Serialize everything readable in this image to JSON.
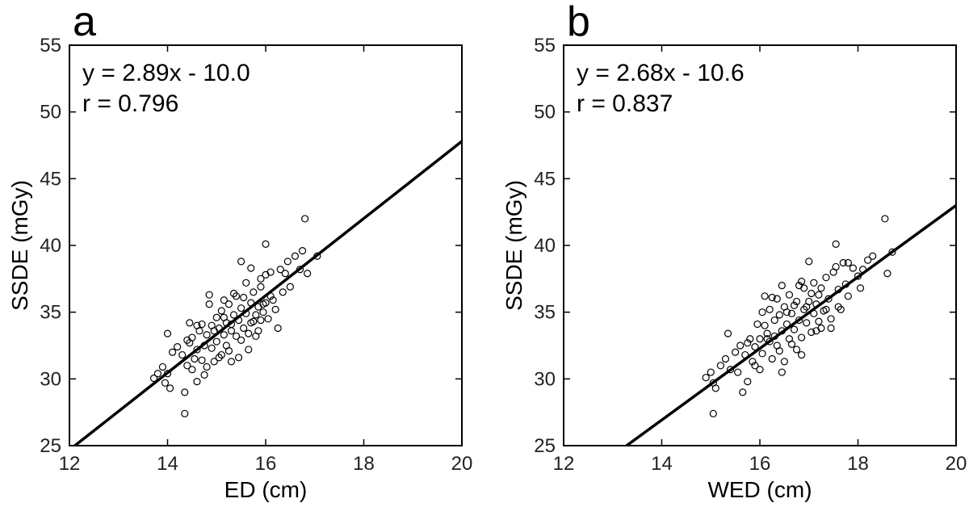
{
  "chart_data": [
    {
      "panel_letter": "a",
      "type": "scatter",
      "xlabel": "ED (cm)",
      "ylabel": "SSDE (mGy)",
      "xlim": [
        12,
        20
      ],
      "ylim": [
        25,
        55
      ],
      "xticks": [
        "12",
        "14",
        "16",
        "18",
        "20"
      ],
      "yticks": [
        "25",
        "30",
        "35",
        "40",
        "45",
        "50",
        "55"
      ],
      "equation": "y = 2.89x - 10.0",
      "correlation": "r = 0.796",
      "fit": {
        "slope": 2.89,
        "intercept": -10.0
      },
      "points": [
        [
          13.72,
          30.05
        ],
        [
          13.8,
          30.4
        ],
        [
          13.9,
          30.9
        ],
        [
          13.95,
          29.7
        ],
        [
          14.0,
          30.4
        ],
        [
          14.05,
          29.3
        ],
        [
          14.1,
          32.0
        ],
        [
          14.0,
          33.4
        ],
        [
          14.2,
          32.4
        ],
        [
          14.3,
          31.8
        ],
        [
          14.35,
          27.4
        ],
        [
          14.35,
          29.0
        ],
        [
          14.4,
          31.0
        ],
        [
          14.45,
          32.7
        ],
        [
          14.5,
          30.7
        ],
        [
          14.5,
          33.1
        ],
        [
          14.55,
          31.5
        ],
        [
          14.6,
          32.2
        ],
        [
          14.6,
          29.8
        ],
        [
          14.65,
          33.6
        ],
        [
          14.7,
          31.4
        ],
        [
          14.7,
          34.1
        ],
        [
          14.75,
          32.5
        ],
        [
          14.8,
          30.9
        ],
        [
          14.8,
          33.3
        ],
        [
          14.85,
          35.6
        ],
        [
          14.9,
          34.0
        ],
        [
          14.9,
          32.3
        ],
        [
          14.95,
          31.3
        ],
        [
          15.0,
          34.6
        ],
        [
          15.0,
          32.8
        ],
        [
          15.05,
          33.8
        ],
        [
          15.1,
          31.8
        ],
        [
          15.1,
          35.1
        ],
        [
          15.15,
          33.3
        ],
        [
          15.2,
          34.2
        ],
        [
          15.2,
          32.5
        ],
        [
          15.25,
          35.6
        ],
        [
          15.3,
          33.6
        ],
        [
          15.3,
          31.3
        ],
        [
          15.35,
          34.8
        ],
        [
          15.4,
          33.2
        ],
        [
          15.4,
          36.2
        ],
        [
          15.45,
          34.4
        ],
        [
          15.5,
          32.9
        ],
        [
          15.5,
          35.3
        ],
        [
          15.55,
          33.8
        ],
        [
          15.6,
          34.9
        ],
        [
          15.6,
          37.2
        ],
        [
          15.65,
          33.4
        ],
        [
          15.7,
          35.7
        ],
        [
          15.7,
          34.2
        ],
        [
          15.75,
          36.5
        ],
        [
          15.8,
          34.8
        ],
        [
          15.8,
          33.2
        ],
        [
          15.85,
          35.4
        ],
        [
          15.9,
          34.4
        ],
        [
          15.9,
          36.9
        ],
        [
          15.95,
          35.0
        ],
        [
          16.0,
          37.8
        ],
        [
          16.0,
          35.7
        ],
        [
          16.0,
          40.1
        ],
        [
          16.05,
          34.5
        ],
        [
          16.1,
          36.2
        ],
        [
          16.1,
          38.0
        ],
        [
          16.2,
          35.2
        ],
        [
          16.25,
          33.8
        ],
        [
          16.3,
          38.2
        ],
        [
          16.35,
          36.5
        ],
        [
          16.4,
          37.9
        ],
        [
          16.45,
          38.8
        ],
        [
          16.5,
          36.9
        ],
        [
          16.6,
          39.2
        ],
        [
          16.7,
          38.2
        ],
        [
          16.75,
          39.6
        ],
        [
          16.8,
          42.0
        ],
        [
          16.85,
          37.9
        ],
        [
          17.05,
          39.2
        ],
        [
          14.4,
          32.9
        ],
        [
          14.6,
          34.0
        ],
        [
          14.75,
          30.3
        ],
        [
          14.95,
          33.6
        ],
        [
          15.05,
          31.6
        ],
        [
          15.15,
          34.6
        ],
        [
          15.25,
          32.1
        ],
        [
          15.35,
          36.4
        ],
        [
          15.45,
          31.6
        ],
        [
          15.55,
          36.1
        ],
        [
          15.65,
          32.2
        ],
        [
          15.75,
          34.3
        ],
        [
          15.85,
          33.6
        ],
        [
          15.95,
          35.6
        ],
        [
          15.5,
          38.8
        ],
        [
          15.7,
          38.3
        ],
        [
          14.85,
          36.3
        ],
        [
          14.45,
          34.2
        ],
        [
          15.15,
          35.9
        ],
        [
          15.3,
          34.1
        ],
        [
          15.9,
          37.5
        ],
        [
          16.15,
          35.9
        ]
      ]
    },
    {
      "panel_letter": "b",
      "type": "scatter",
      "xlabel": "WED (cm)",
      "ylabel": "SSDE (mGy)",
      "xlim": [
        12,
        20
      ],
      "ylim": [
        25,
        55
      ],
      "xticks": [
        "12",
        "14",
        "16",
        "18",
        "20"
      ],
      "yticks": [
        "25",
        "30",
        "35",
        "40",
        "45",
        "50",
        "55"
      ],
      "equation": "y = 2.68x - 10.6",
      "correlation": "r = 0.837",
      "fit": {
        "slope": 2.68,
        "intercept": -10.6
      },
      "points": [
        [
          14.9,
          30.1
        ],
        [
          15.0,
          30.5
        ],
        [
          15.05,
          29.7
        ],
        [
          15.05,
          27.4
        ],
        [
          15.1,
          29.3
        ],
        [
          15.2,
          31.0
        ],
        [
          15.3,
          31.5
        ],
        [
          15.35,
          33.4
        ],
        [
          15.4,
          30.7
        ],
        [
          15.5,
          32.0
        ],
        [
          15.55,
          30.5
        ],
        [
          15.6,
          32.5
        ],
        [
          15.65,
          29.0
        ],
        [
          15.7,
          31.8
        ],
        [
          15.75,
          29.8
        ],
        [
          15.8,
          33.0
        ],
        [
          15.85,
          31.3
        ],
        [
          15.9,
          32.4
        ],
        [
          15.95,
          34.1
        ],
        [
          16.0,
          33.0
        ],
        [
          16.0,
          30.7
        ],
        [
          16.05,
          31.9
        ],
        [
          16.1,
          36.2
        ],
        [
          16.1,
          34.0
        ],
        [
          16.15,
          33.4
        ],
        [
          16.2,
          32.8
        ],
        [
          16.2,
          35.2
        ],
        [
          16.25,
          31.5
        ],
        [
          16.3,
          34.4
        ],
        [
          16.3,
          33.2
        ],
        [
          16.35,
          36.0
        ],
        [
          16.4,
          32.1
        ],
        [
          16.4,
          34.8
        ],
        [
          16.45,
          33.6
        ],
        [
          16.5,
          35.4
        ],
        [
          16.5,
          31.3
        ],
        [
          16.55,
          34.1
        ],
        [
          16.6,
          36.3
        ],
        [
          16.6,
          33.0
        ],
        [
          16.65,
          34.9
        ],
        [
          16.7,
          33.7
        ],
        [
          16.7,
          35.5
        ],
        [
          16.75,
          32.2
        ],
        [
          16.8,
          34.4
        ],
        [
          16.8,
          37.0
        ],
        [
          16.85,
          33.1
        ],
        [
          16.9,
          35.2
        ],
        [
          16.9,
          36.8
        ],
        [
          16.95,
          34.2
        ],
        [
          17.0,
          38.8
        ],
        [
          17.0,
          35.8
        ],
        [
          17.05,
          33.5
        ],
        [
          17.1,
          34.9
        ],
        [
          17.1,
          37.2
        ],
        [
          17.15,
          35.6
        ],
        [
          17.2,
          34.3
        ],
        [
          17.2,
          36.3
        ],
        [
          17.3,
          35.1
        ],
        [
          17.35,
          37.6
        ],
        [
          17.4,
          36.0
        ],
        [
          17.45,
          34.5
        ],
        [
          17.5,
          38.0
        ],
        [
          17.55,
          40.1
        ],
        [
          17.6,
          36.7
        ],
        [
          17.65,
          35.2
        ],
        [
          17.7,
          38.7
        ],
        [
          17.75,
          37.1
        ],
        [
          17.8,
          38.7
        ],
        [
          17.9,
          38.3
        ],
        [
          18.0,
          37.7
        ],
        [
          18.05,
          36.8
        ],
        [
          18.2,
          38.9
        ],
        [
          18.3,
          39.2
        ],
        [
          18.55,
          42.0
        ],
        [
          18.6,
          37.9
        ],
        [
          18.7,
          39.5
        ],
        [
          16.15,
          33.0
        ],
        [
          16.35,
          32.5
        ],
        [
          16.55,
          35.0
        ],
        [
          16.75,
          35.8
        ],
        [
          16.95,
          35.4
        ],
        [
          17.15,
          33.6
        ],
        [
          17.25,
          36.8
        ],
        [
          17.45,
          33.8
        ],
        [
          17.6,
          35.4
        ],
        [
          16.25,
          36.1
        ],
        [
          16.45,
          37.0
        ],
        [
          16.85,
          31.8
        ],
        [
          17.05,
          36.4
        ],
        [
          17.8,
          36.2
        ],
        [
          15.9,
          31.0
        ],
        [
          16.05,
          35.0
        ],
        [
          16.65,
          32.6
        ],
        [
          17.35,
          35.2
        ],
        [
          17.55,
          38.4
        ],
        [
          16.45,
          30.5
        ],
        [
          15.75,
          32.7
        ],
        [
          16.85,
          37.3
        ],
        [
          17.25,
          33.8
        ],
        [
          18.1,
          38.2
        ]
      ]
    }
  ]
}
